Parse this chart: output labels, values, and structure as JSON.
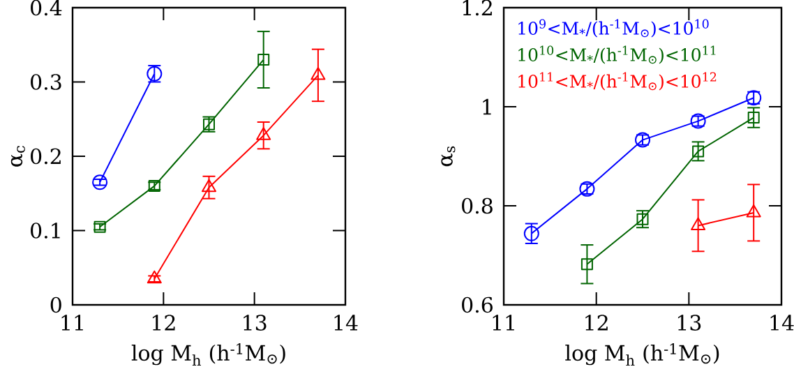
{
  "chart_data": [
    {
      "type": "line",
      "xlabel": "log M$_{h}$ (h$^{-1}$M$_{⊙}$)",
      "ylabel": "α$_{c}$",
      "xlim": [
        11,
        14
      ],
      "ylim": [
        0,
        0.4
      ],
      "xticks": [
        11,
        12,
        13,
        14
      ],
      "yticks": [
        0,
        0.1,
        0.2,
        0.3,
        0.4
      ],
      "series": [
        {
          "color": "#0000ff",
          "marker": "circle",
          "x": [
            11.3,
            11.9
          ],
          "values": [
            0.165,
            0.311
          ],
          "errors": [
            0.004,
            0.011
          ]
        },
        {
          "color": "#006400",
          "marker": "square",
          "x": [
            11.3,
            11.9,
            12.5,
            13.1
          ],
          "values": [
            0.105,
            0.16,
            0.243,
            0.33
          ],
          "errors": [
            0.004,
            0.005,
            0.01,
            0.038
          ]
        },
        {
          "color": "#ff0000",
          "marker": "triangle",
          "x": [
            11.9,
            12.5,
            13.1,
            13.7
          ],
          "values": [
            0.035,
            0.158,
            0.228,
            0.309
          ],
          "errors": [
            0.004,
            0.015,
            0.018,
            0.035
          ]
        }
      ]
    },
    {
      "type": "line",
      "xlabel": "log M$_{h}$ (h$^{-1}$M$_{⊙}$)",
      "ylabel": "α$_{s}$",
      "xlim": [
        11,
        14
      ],
      "ylim": [
        0.6,
        1.2
      ],
      "xticks": [
        11,
        12,
        13,
        14
      ],
      "yticks": [
        0.6,
        0.8,
        1,
        1.2
      ],
      "series": [
        {
          "name": "10$^{9}$<M$_{*}$/(h$^{-1}$M$_{⊙}$)<10$^{10}$",
          "color": "#0000ff",
          "marker": "circle",
          "x": [
            11.3,
            11.9,
            12.5,
            13.1,
            13.7
          ],
          "values": [
            0.744,
            0.834,
            0.933,
            0.971,
            1.018
          ],
          "errors": [
            0.02,
            0.01,
            0.01,
            0.01,
            0.012
          ]
        },
        {
          "name": "10$^{10}$<M$_{*}$/(h$^{-1}$M$_{⊙}$)<10$^{11}$",
          "color": "#006400",
          "marker": "square",
          "x": [
            11.9,
            12.5,
            13.1,
            13.7
          ],
          "values": [
            0.682,
            0.773,
            0.91,
            0.978
          ],
          "errors": [
            0.039,
            0.017,
            0.019,
            0.02
          ]
        },
        {
          "name": "10$^{11}$<M$_{*}$/(h$^{-1}$M$_{⊙}$)<10$^{12}$",
          "color": "#ff0000",
          "marker": "triangle",
          "x": [
            13.1,
            13.7
          ],
          "values": [
            0.76,
            0.786
          ],
          "errors": [
            0.052,
            0.057
          ]
        }
      ]
    }
  ]
}
